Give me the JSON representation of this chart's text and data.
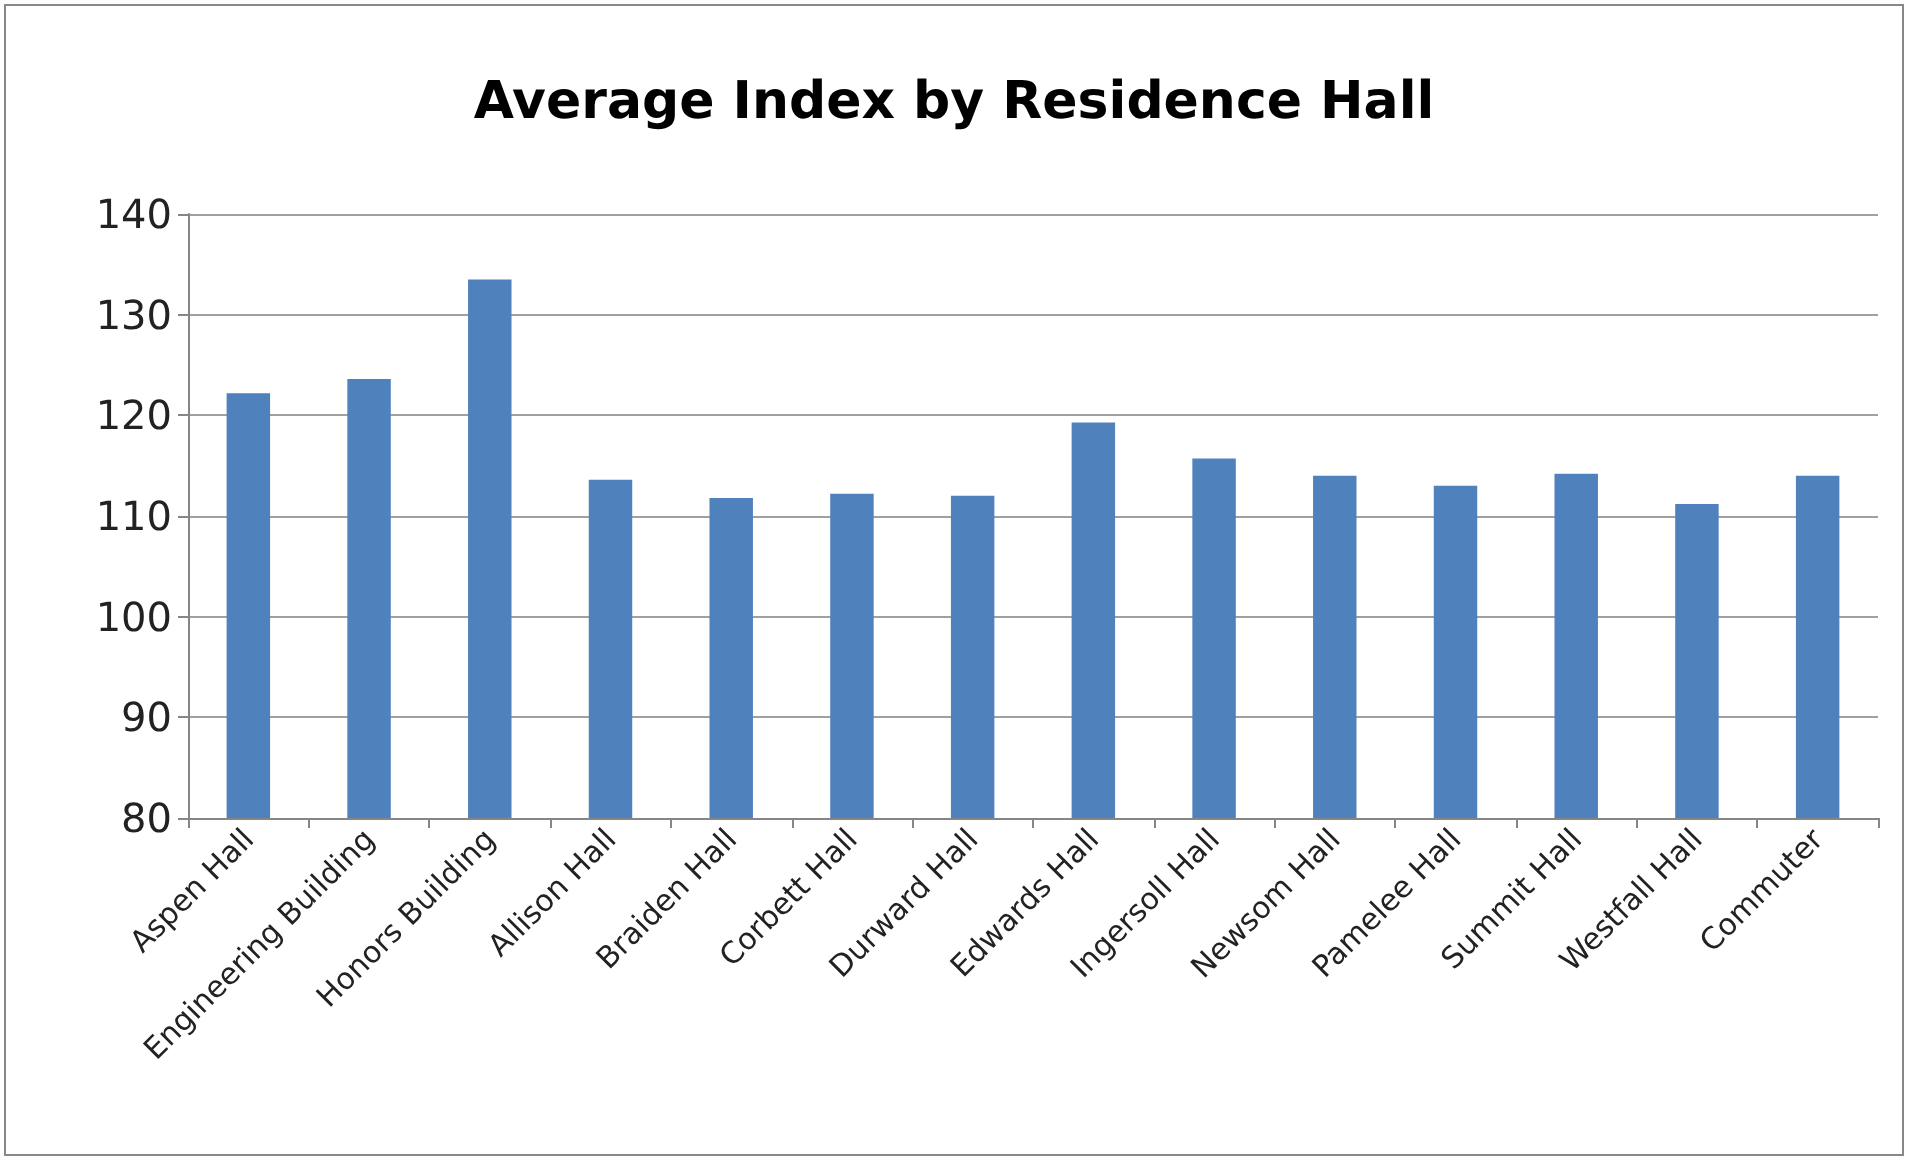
{
  "chart_data": {
    "type": "bar",
    "title": "Average Index by Residence Hall",
    "categories": [
      "Aspen Hall",
      "Engineering Building",
      "Honors Building",
      "Allison Hall",
      "Braiden Hall",
      "Corbett Hall",
      "Durward Hall",
      "Edwards Hall",
      "Ingersoll Hall",
      "Newsom Hall",
      "Pamelee Hall",
      "Summit Hall",
      "Westfall Hall",
      "Commuter"
    ],
    "values": [
      122.2,
      123.6,
      133.5,
      113.6,
      111.8,
      112.2,
      112.0,
      119.3,
      115.7,
      114.0,
      113.0,
      114.2,
      111.2,
      114.0
    ],
    "color": "#4f81bd",
    "ylim": [
      80,
      140
    ],
    "yticks": [
      80,
      90,
      100,
      110,
      120,
      130,
      140
    ],
    "grid": "y"
  }
}
